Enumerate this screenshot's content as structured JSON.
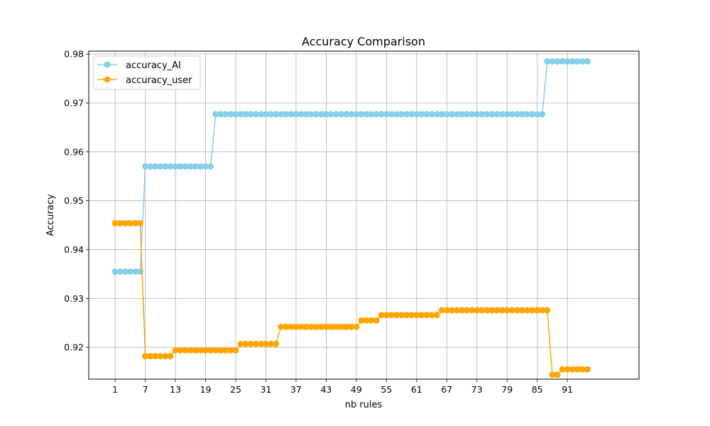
{
  "chart_data": {
    "type": "line",
    "title": "Accuracy Comparison",
    "xlabel": "nb rules",
    "ylabel": "Accuracy",
    "xlim": [
      -4.25,
      105.25
    ],
    "ylim": [
      0.9135,
      0.9806
    ],
    "x_ticks": [
      1,
      7,
      13,
      19,
      25,
      31,
      37,
      43,
      49,
      55,
      61,
      67,
      73,
      79,
      85,
      91
    ],
    "y_ticks": [
      0.92,
      0.93,
      0.94,
      0.95,
      0.96,
      0.97,
      0.98
    ],
    "y_tick_labels": [
      "0.92",
      "0.93",
      "0.94",
      "0.95",
      "0.96",
      "0.97",
      "0.98"
    ],
    "grid": true,
    "legend_position": "upper-left",
    "x_start": 1,
    "series": [
      {
        "name": "accuracy_AI",
        "color": "#87CEEB",
        "segments": [
          {
            "count": 6,
            "value": 0.9355
          },
          {
            "count": 14,
            "value": 0.957
          },
          {
            "count": 66,
            "value": 0.9677
          },
          {
            "count": 9,
            "value": 0.9785
          }
        ]
      },
      {
        "name": "accuracy_user",
        "color": "#FFA500",
        "segments": [
          {
            "count": 6,
            "value": 0.9454
          },
          {
            "count": 6,
            "value": 0.9182
          },
          {
            "count": 13,
            "value": 0.9194
          },
          {
            "count": 8,
            "value": 0.9207
          },
          {
            "count": 16,
            "value": 0.9242
          },
          {
            "count": 4,
            "value": 0.9255
          },
          {
            "count": 12,
            "value": 0.9266
          },
          {
            "count": 22,
            "value": 0.9276
          },
          {
            "count": 2,
            "value": 0.9144
          },
          {
            "count": 6,
            "value": 0.9155
          }
        ]
      }
    ]
  }
}
